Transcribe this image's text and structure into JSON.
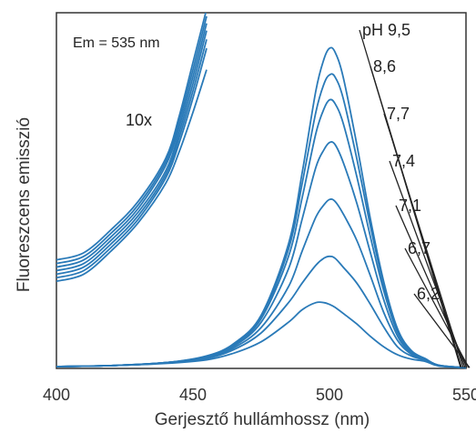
{
  "chart_data": {
    "type": "line",
    "title": "",
    "xlabel": "Gerjesztő hullámhossz (nm)",
    "ylabel": "Fluoreszcens emisszió",
    "xlim": [
      400,
      550
    ],
    "ylim": [
      0,
      100
    ],
    "x_ticks": [
      400,
      450,
      500,
      550
    ],
    "y_ticks": [],
    "grid": false,
    "line_color": "#2a7ab8",
    "annotation_em": "Em = 535 nm",
    "annotation_scale": "10x",
    "x": [
      400,
      420,
      440,
      455,
      465,
      475,
      485,
      490,
      495,
      498,
      500,
      502,
      505,
      510,
      515,
      520,
      525,
      530,
      535,
      540,
      550
    ],
    "series": [
      {
        "label": "pH 9,5",
        "values": [
          0.5,
          0.8,
          1.6,
          3.5,
          7.0,
          15.0,
          35.0,
          55.0,
          78.0,
          87.0,
          90.0,
          89.0,
          82.0,
          63.0,
          42.0,
          24.0,
          11.0,
          5.0,
          2.8,
          0.9,
          0.2
        ]
      },
      {
        "label": "8,6",
        "values": [
          0.5,
          0.8,
          1.6,
          3.4,
          6.8,
          14.5,
          33.5,
          52.0,
          72.0,
          80.0,
          82.5,
          82.0,
          76.0,
          59.0,
          40.0,
          23.0,
          10.5,
          4.8,
          2.7,
          0.9,
          0.2
        ]
      },
      {
        "label": "7,7",
        "values": [
          0.5,
          0.8,
          1.6,
          3.3,
          6.6,
          14.0,
          31.5,
          48.0,
          66.0,
          73.0,
          75.5,
          74.5,
          69.0,
          54.0,
          37.0,
          21.5,
          10.0,
          4.6,
          2.6,
          0.9,
          0.2
        ]
      },
      {
        "label": "7,4",
        "values": [
          0.5,
          0.8,
          1.6,
          3.2,
          6.3,
          13.0,
          28.0,
          42.0,
          56.5,
          61.5,
          63.5,
          63.0,
          58.0,
          46.5,
          32.5,
          19.0,
          9.0,
          4.3,
          2.5,
          0.8,
          0.2
        ]
      },
      {
        "label": "7,1",
        "values": [
          0.5,
          0.8,
          1.6,
          3.0,
          5.8,
          11.5,
          23.0,
          33.0,
          42.5,
          46.0,
          47.5,
          47.0,
          43.5,
          36.0,
          26.0,
          15.5,
          7.8,
          4.0,
          2.4,
          0.8,
          0.2
        ]
      },
      {
        "label": "6,7",
        "values": [
          0.5,
          0.8,
          1.5,
          2.8,
          5.3,
          10.0,
          18.5,
          24.0,
          29.0,
          31.0,
          31.5,
          31.0,
          28.5,
          24.0,
          18.0,
          11.5,
          6.0,
          3.5,
          2.3,
          0.8,
          0.2
        ]
      },
      {
        "label": "6,2",
        "values": [
          0.5,
          0.8,
          1.4,
          2.4,
          4.3,
          7.5,
          13.0,
          16.5,
          18.5,
          18.5,
          18.0,
          17.2,
          15.5,
          12.5,
          9.0,
          6.0,
          3.8,
          2.6,
          2.0,
          0.7,
          0.2
        ]
      }
    ],
    "zoom_x10": {
      "x": [
        400,
        410,
        420,
        430,
        440,
        445,
        450,
        455
      ],
      "values": [
        [
          30.5,
          32.5,
          39.0,
          47.0,
          59.0,
          71.0,
          86.0,
          101.0
        ],
        [
          29.5,
          31.5,
          38.0,
          46.0,
          58.0,
          69.5,
          84.0,
          99.0
        ],
        [
          28.5,
          30.5,
          37.0,
          45.0,
          57.0,
          68.0,
          82.0,
          97.0
        ],
        [
          27.5,
          29.5,
          36.0,
          44.0,
          55.5,
          66.5,
          80.0,
          95.0
        ],
        [
          26.5,
          28.5,
          35.0,
          43.0,
          54.5,
          65.0,
          78.0,
          92.5
        ],
        [
          25.5,
          27.5,
          34.0,
          42.0,
          53.5,
          63.5,
          76.0,
          90.0
        ],
        [
          24.5,
          26.5,
          33.0,
          41.0,
          52.0,
          61.0,
          72.0,
          84.0
        ]
      ]
    }
  }
}
